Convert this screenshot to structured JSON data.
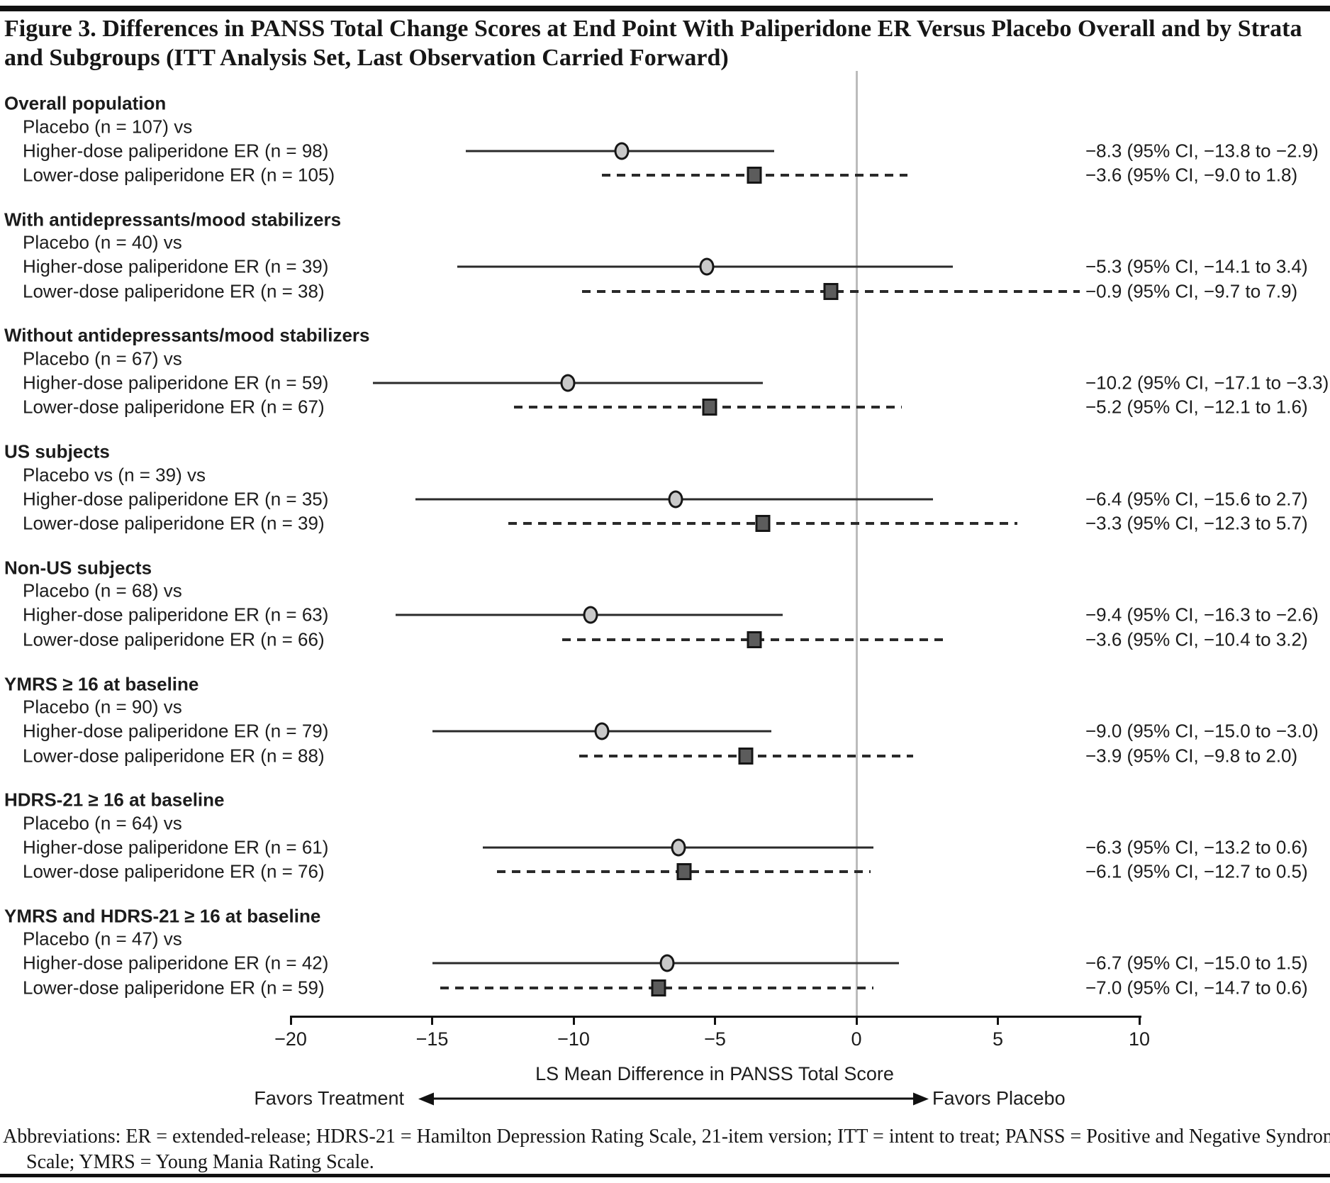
{
  "figure": {
    "title": "Figure 3. Differences in PANSS Total Change Scores at End Point With Paliperidone ER Versus Placebo Overall and by Strata and Subgroups (ITT Analysis Set, Last Observation Carried Forward)",
    "abbreviations": "Abbreviations: ER = extended-release; HDRS-21 = Hamilton Depression Rating Scale, 21-item version; ITT = intent to treat; PANSS = Positive and Negative Syndrome Scale; YMRS = Young Mania Rating Scale."
  },
  "colors": {
    "text": "#1c1c1c",
    "line": "#2a2a2a",
    "circle_fill": "#c9c9c9",
    "square_fill": "#5c5c5c",
    "reference_line": "#bcbcbc"
  },
  "chart_data": {
    "type": "forest",
    "xlabel": "LS Mean Difference in PANSS Total Score",
    "xlim": [
      -20,
      10
    ],
    "reference_line_x": 0,
    "favors_left": "Favors Treatment",
    "favors_right": "Favors Placebo",
    "x_ticks": [
      {
        "value": -20,
        "label": "−20"
      },
      {
        "value": -15,
        "label": "−15"
      },
      {
        "value": -10,
        "label": "−10"
      },
      {
        "value": -5,
        "label": "−5"
      },
      {
        "value": 0,
        "label": "0"
      },
      {
        "value": 5,
        "label": "5"
      },
      {
        "value": 10,
        "label": "10"
      }
    ],
    "series": [
      {
        "name": "Higher-dose paliperidone ER",
        "marker": "circle",
        "line": "solid"
      },
      {
        "name": "Lower-dose paliperidone ER",
        "marker": "square",
        "line": "dashed"
      }
    ],
    "groups": [
      {
        "label": "Overall population",
        "comparator": "Placebo (n = 107) vs",
        "rows": [
          {
            "label": "Higher-dose paliperidone ER (n = 98)",
            "style": "higher",
            "estimate": -8.3,
            "ci_low": -13.8,
            "ci_high": -2.9,
            "ci_text": "−8.3 (95% CI, −13.8 to −2.9)"
          },
          {
            "label": "Lower-dose paliperidone ER (n = 105)",
            "style": "lower",
            "estimate": -3.6,
            "ci_low": -9.0,
            "ci_high": 1.8,
            "ci_text": "−3.6 (95% CI, −9.0 to 1.8)"
          }
        ]
      },
      {
        "label": "With antidepressants/mood stabilizers",
        "comparator": "Placebo (n = 40) vs",
        "rows": [
          {
            "label": "Higher-dose paliperidone ER (n = 39)",
            "style": "higher",
            "estimate": -5.3,
            "ci_low": -14.1,
            "ci_high": 3.4,
            "ci_text": "−5.3 (95% CI, −14.1 to 3.4)"
          },
          {
            "label": "Lower-dose paliperidone ER (n = 38)",
            "style": "lower",
            "estimate": -0.9,
            "ci_low": -9.7,
            "ci_high": 7.9,
            "ci_text": "−0.9 (95% CI, −9.7 to 7.9)"
          }
        ]
      },
      {
        "label": "Without antidepressants/mood stabilizers",
        "comparator": "Placebo (n = 67) vs",
        "rows": [
          {
            "label": "Higher-dose paliperidone ER (n = 59)",
            "style": "higher",
            "estimate": -10.2,
            "ci_low": -17.1,
            "ci_high": -3.3,
            "ci_text": "−10.2 (95% CI, −17.1 to −3.3)"
          },
          {
            "label": "Lower-dose paliperidone ER (n = 67)",
            "style": "lower",
            "estimate": -5.2,
            "ci_low": -12.1,
            "ci_high": 1.6,
            "ci_text": "−5.2 (95% CI, −12.1 to 1.6)"
          }
        ]
      },
      {
        "label": "US subjects",
        "comparator": "Placebo vs (n = 39) vs",
        "rows": [
          {
            "label": "Higher-dose paliperidone ER (n = 35)",
            "style": "higher",
            "estimate": -6.4,
            "ci_low": -15.6,
            "ci_high": 2.7,
            "ci_text": "−6.4 (95% CI, −15.6 to 2.7)"
          },
          {
            "label": "Lower-dose paliperidone ER (n = 39)",
            "style": "lower",
            "estimate": -3.3,
            "ci_low": -12.3,
            "ci_high": 5.7,
            "ci_text": "−3.3 (95% CI, −12.3 to 5.7)"
          }
        ]
      },
      {
        "label": "Non-US subjects",
        "comparator": "Placebo (n = 68) vs",
        "rows": [
          {
            "label": "Higher-dose paliperidone ER (n = 63)",
            "style": "higher",
            "estimate": -9.4,
            "ci_low": -16.3,
            "ci_high": -2.6,
            "ci_text": "−9.4 (95% CI, −16.3 to −2.6)"
          },
          {
            "label": "Lower-dose paliperidone ER (n = 66)",
            "style": "lower",
            "estimate": -3.6,
            "ci_low": -10.4,
            "ci_high": 3.2,
            "ci_text": "−3.6 (95% CI, −10.4 to 3.2)"
          }
        ]
      },
      {
        "label": "YMRS ≥ 16 at baseline",
        "comparator": "Placebo (n = 90) vs",
        "rows": [
          {
            "label": "Higher-dose paliperidone ER (n = 79)",
            "style": "higher",
            "estimate": -9.0,
            "ci_low": -15.0,
            "ci_high": -3.0,
            "ci_text": "−9.0 (95% CI, −15.0 to −3.0)"
          },
          {
            "label": "Lower-dose paliperidone ER (n = 88)",
            "style": "lower",
            "estimate": -3.9,
            "ci_low": -9.8,
            "ci_high": 2.0,
            "ci_text": "−3.9 (95% CI, −9.8 to 2.0)"
          }
        ]
      },
      {
        "label": "HDRS-21 ≥ 16 at baseline",
        "comparator": "Placebo (n = 64) vs",
        "rows": [
          {
            "label": "Higher-dose paliperidone ER (n = 61)",
            "style": "higher",
            "estimate": -6.3,
            "ci_low": -13.2,
            "ci_high": 0.6,
            "ci_text": "−6.3 (95% CI, −13.2 to 0.6)"
          },
          {
            "label": "Lower-dose paliperidone ER (n = 76)",
            "style": "lower",
            "estimate": -6.1,
            "ci_low": -12.7,
            "ci_high": 0.5,
            "ci_text": "−6.1 (95% CI, −12.7 to 0.5)"
          }
        ]
      },
      {
        "label": "YMRS and HDRS-21 ≥ 16 at baseline",
        "comparator": "Placebo (n = 47) vs",
        "rows": [
          {
            "label": "Higher-dose paliperidone ER (n = 42)",
            "style": "higher",
            "estimate": -6.7,
            "ci_low": -15.0,
            "ci_high": 1.5,
            "ci_text": "−6.7 (95% CI, −15.0 to 1.5)"
          },
          {
            "label": "Lower-dose paliperidone ER (n = 59)",
            "style": "lower",
            "estimate": -7.0,
            "ci_low": -14.7,
            "ci_high": 0.6,
            "ci_text": "−7.0 (95% CI, −14.7 to 0.6)"
          }
        ]
      }
    ]
  }
}
